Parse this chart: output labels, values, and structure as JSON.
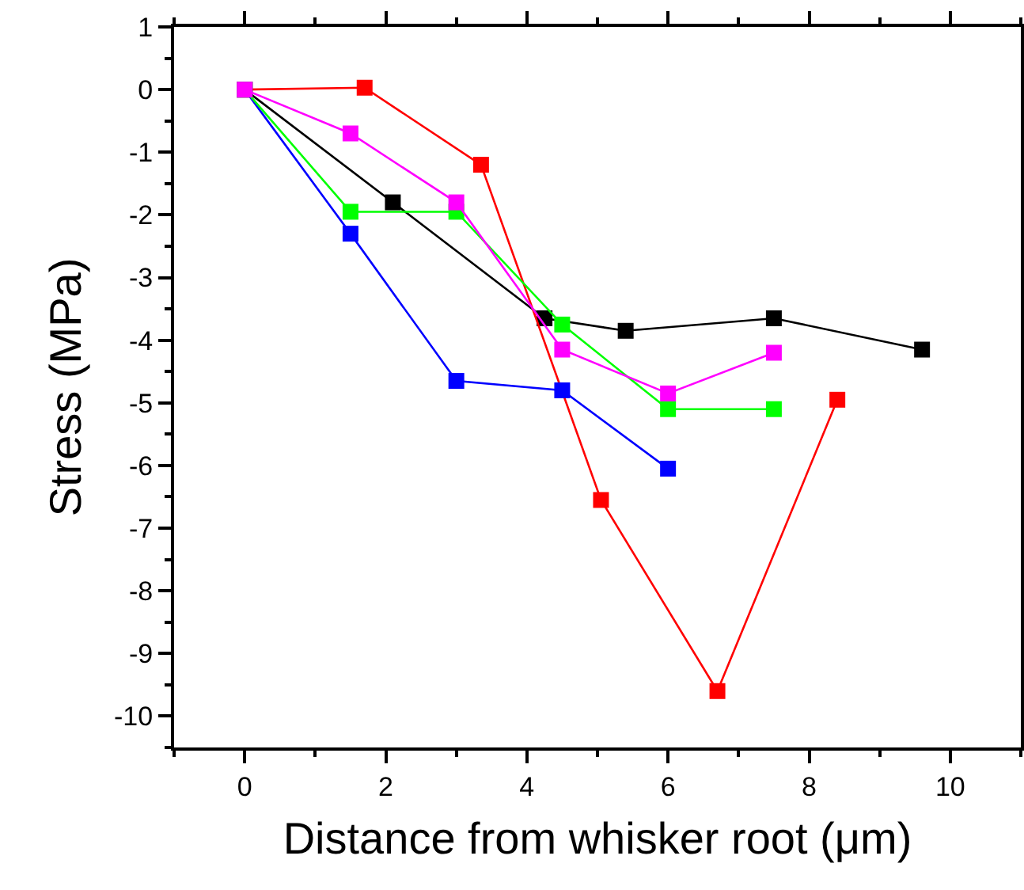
{
  "chart_data": {
    "type": "line",
    "xlabel": "Distance from whisker root (μm)",
    "ylabel": "Stress (MPa)",
    "xlim": [
      -1,
      11
    ],
    "xticks": [
      0,
      2,
      4,
      6,
      8,
      10
    ],
    "ylim": [
      -10.5,
      1
    ],
    "yticks": [
      1,
      0,
      -1,
      -2,
      -3,
      -4,
      -5,
      -6,
      -7,
      -8,
      -9,
      -10
    ],
    "marker": "square",
    "line_style": "solid",
    "series": [
      {
        "color": "#000000",
        "x": [
          0,
          2.1,
          4.25,
          5.4,
          7.5,
          9.6
        ],
        "values": [
          0,
          -1.8,
          -3.65,
          -3.85,
          -3.65,
          -4.15
        ]
      },
      {
        "color": "#ff0000",
        "x": [
          0,
          1.7,
          3.35,
          5.05,
          6.7,
          8.4
        ],
        "values": [
          0,
          0.03,
          -1.2,
          -6.55,
          -9.6,
          -4.95
        ]
      },
      {
        "color": "#0000ff",
        "x": [
          0,
          1.5,
          3,
          4.5,
          6
        ],
        "values": [
          0,
          -2.3,
          -4.65,
          -4.8,
          -6.05
        ]
      },
      {
        "color": "#00ff00",
        "x": [
          0,
          1.5,
          3,
          4.5,
          6,
          7.5
        ],
        "values": [
          0,
          -1.95,
          -1.95,
          -3.75,
          -5.1,
          -5.1
        ]
      },
      {
        "color": "#ff00ff",
        "x": [
          0,
          1.5,
          3,
          4.5,
          6,
          7.5
        ],
        "values": [
          0,
          -0.7,
          -1.8,
          -4.15,
          -4.85,
          -4.2
        ]
      }
    ]
  }
}
